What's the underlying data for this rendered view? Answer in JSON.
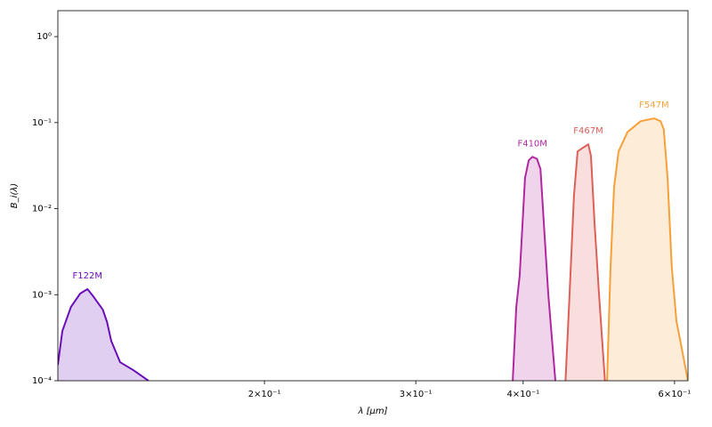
{
  "chart_data": {
    "type": "area",
    "log_x": true,
    "log_y": true,
    "xlabel": "λ [μm]",
    "ylabel": "B_i(λ)",
    "xlim": [
      0.115,
      0.622
    ],
    "ylim": [
      0.0001,
      2
    ],
    "xticks": [
      {
        "value": 0.2,
        "label": "2×10⁻¹"
      },
      {
        "value": 0.3,
        "label": "3×10⁻¹"
      },
      {
        "value": 0.4,
        "label": "4×10⁻¹"
      },
      {
        "value": 0.6,
        "label": "6×10⁻¹"
      }
    ],
    "yticks": [
      {
        "value": 0.0001,
        "label": "10⁻⁴"
      },
      {
        "value": 0.001,
        "label": "10⁻³"
      },
      {
        "value": 0.01,
        "label": "10⁻²"
      },
      {
        "value": 0.1,
        "label": "10⁻¹"
      },
      {
        "value": 1,
        "label": "10⁰"
      }
    ],
    "series": [
      {
        "name": "F122M",
        "color": "#6a0db8",
        "x": [
          0.115,
          0.1164,
          0.1191,
          0.1221,
          0.1245,
          0.1265,
          0.1297,
          0.1312,
          0.1327,
          0.1359,
          0.1409,
          0.1466
        ],
        "values": [
          0.000153,
          0.00038,
          0.00072,
          0.00103,
          0.00116,
          0.00095,
          0.00067,
          0.00048,
          0.00029,
          0.000164,
          0.000132,
          0.0001
        ]
      },
      {
        "name": "F410M",
        "color": "#b0279f",
        "x": [
          0.389,
          0.3927,
          0.3963,
          0.402,
          0.406,
          0.41,
          0.415,
          0.419,
          0.4227,
          0.4278,
          0.436
        ],
        "values": [
          0.0001,
          0.00072,
          0.00166,
          0.0227,
          0.0365,
          0.04,
          0.038,
          0.0288,
          0.0069,
          0.00103,
          0.0001
        ]
      },
      {
        "name": "F467M",
        "color": "#dc6058",
        "x": [
          0.448,
          0.453,
          0.4583,
          0.4628,
          0.4695,
          0.4762,
          0.4796,
          0.4843,
          0.49,
          0.498
        ],
        "values": [
          0.0001,
          0.00103,
          0.0141,
          0.0463,
          0.051,
          0.056,
          0.041,
          0.0069,
          0.00103,
          0.0001
        ]
      },
      {
        "name": "F547M",
        "color": "#f6a03a",
        "x": [
          0.5008,
          0.5055,
          0.5103,
          0.5164,
          0.529,
          0.548,
          0.568,
          0.578,
          0.583,
          0.589,
          0.5956,
          0.603,
          0.622
        ],
        "values": [
          0.0001,
          0.0021,
          0.0179,
          0.0463,
          0.078,
          0.104,
          0.112,
          0.104,
          0.084,
          0.0227,
          0.0021,
          0.0005,
          0.0001
        ]
      }
    ]
  }
}
